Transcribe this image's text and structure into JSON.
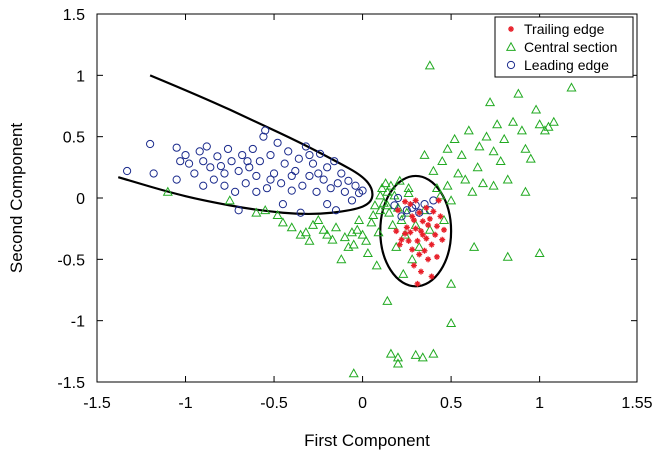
{
  "chart_data": {
    "type": "scatter",
    "title": "",
    "xlabel": "First Component",
    "ylabel": "Second Component",
    "xlim": [
      -1.5,
      1.55
    ],
    "ylim": [
      -1.5,
      1.5
    ],
    "x_ticks": [
      -1.5,
      -1,
      -0.5,
      0,
      0.5,
      1,
      1.55
    ],
    "x_tick_labels": [
      "-1.5",
      "-1",
      "-0.5",
      "0",
      "0.5",
      "1",
      "1.55"
    ],
    "y_ticks": [
      -1.5,
      -1,
      -0.5,
      0,
      0.5,
      1,
      1.5
    ],
    "y_tick_labels": [
      "-1.5",
      "-1",
      "-0.5",
      "0",
      "0.5",
      "1",
      "1.5"
    ],
    "grid": false,
    "legend_position": "top-right",
    "colors": {
      "trailing": "#e8202a",
      "central": "#22aa22",
      "leading": "#1a2a8c",
      "ellipse": "#000000"
    },
    "series": [
      {
        "name": "Trailing edge",
        "marker": "star",
        "points": [
          [
            0.19,
            -0.27
          ],
          [
            0.2,
            -0.1
          ],
          [
            0.21,
            -0.38
          ],
          [
            0.22,
            -0.34
          ],
          [
            0.24,
            -0.29
          ],
          [
            0.24,
            -0.03
          ],
          [
            0.25,
            -0.24
          ],
          [
            0.26,
            -0.35
          ],
          [
            0.27,
            -0.28
          ],
          [
            0.27,
            -0.05
          ],
          [
            0.28,
            -0.42
          ],
          [
            0.29,
            -0.18
          ],
          [
            0.29,
            -0.55
          ],
          [
            0.3,
            -0.25
          ],
          [
            0.3,
            -0.02
          ],
          [
            0.31,
            -0.35
          ],
          [
            0.32,
            -0.46
          ],
          [
            0.32,
            -0.12
          ],
          [
            0.33,
            -0.6
          ],
          [
            0.33,
            -0.27
          ],
          [
            0.34,
            -0.3
          ],
          [
            0.34,
            -0.19
          ],
          [
            0.35,
            -0.43
          ],
          [
            0.36,
            -0.33
          ],
          [
            0.36,
            -0.08
          ],
          [
            0.37,
            -0.5
          ],
          [
            0.37,
            -0.22
          ],
          [
            0.38,
            -0.17
          ],
          [
            0.39,
            -0.38
          ],
          [
            0.39,
            -0.64
          ],
          [
            0.4,
            -0.11
          ],
          [
            0.41,
            -0.3
          ],
          [
            0.42,
            -0.23
          ],
          [
            0.42,
            -0.48
          ],
          [
            0.43,
            -0.02
          ],
          [
            0.44,
            -0.15
          ],
          [
            0.45,
            -0.34
          ],
          [
            0.46,
            -0.26
          ],
          [
            0.31,
            -0.7
          ],
          [
            0.28,
            -0.15
          ]
        ]
      },
      {
        "name": "Central section",
        "marker": "triangle",
        "points": [
          [
            -1.1,
            0.05
          ],
          [
            -0.75,
            -0.02
          ],
          [
            -0.6,
            -0.12
          ],
          [
            -0.55,
            -0.1
          ],
          [
            -0.48,
            -0.14
          ],
          [
            -0.45,
            -0.2
          ],
          [
            -0.4,
            -0.24
          ],
          [
            -0.35,
            -0.3
          ],
          [
            -0.32,
            -0.28
          ],
          [
            -0.3,
            -0.35
          ],
          [
            -0.28,
            -0.22
          ],
          [
            -0.25,
            -0.18
          ],
          [
            -0.22,
            -0.26
          ],
          [
            -0.2,
            -0.3
          ],
          [
            -0.17,
            -0.34
          ],
          [
            -0.15,
            -0.24
          ],
          [
            -0.12,
            -0.5
          ],
          [
            -0.1,
            -0.32
          ],
          [
            -0.08,
            -0.4
          ],
          [
            -0.06,
            -0.28
          ],
          [
            -0.05,
            -0.38
          ],
          [
            -0.03,
            -0.26
          ],
          [
            -0.02,
            -0.18
          ],
          [
            0.0,
            -0.3
          ],
          [
            0.02,
            -0.35
          ],
          [
            0.03,
            -0.45
          ],
          [
            0.05,
            -0.2
          ],
          [
            0.06,
            -0.14
          ],
          [
            0.07,
            -0.06
          ],
          [
            0.08,
            -0.55
          ],
          [
            0.09,
            -0.28
          ],
          [
            0.1,
            0.02
          ],
          [
            0.1,
            -0.1
          ],
          [
            0.11,
            0.08
          ],
          [
            0.12,
            -0.04
          ],
          [
            0.13,
            0.12
          ],
          [
            0.14,
            0.05
          ],
          [
            0.15,
            -0.12
          ],
          [
            0.16,
            0.1
          ],
          [
            0.17,
            -0.22
          ],
          [
            0.18,
            0.02
          ],
          [
            0.19,
            -0.4
          ],
          [
            0.2,
            -0.08
          ],
          [
            0.21,
            0.14
          ],
          [
            0.22,
            -0.18
          ],
          [
            0.23,
            -0.62
          ],
          [
            0.24,
            -0.3
          ],
          [
            0.25,
            -0.12
          ],
          [
            0.26,
            0.04
          ],
          [
            0.28,
            -0.5
          ],
          [
            0.3,
            -0.22
          ],
          [
            0.32,
            -0.4
          ],
          [
            0.35,
            -0.1
          ],
          [
            0.38,
            -0.26
          ],
          [
            0.4,
            0.22
          ],
          [
            0.42,
            0.08
          ],
          [
            0.44,
            0.02
          ],
          [
            0.45,
            0.3
          ],
          [
            0.46,
            -0.18
          ],
          [
            0.48,
            0.1
          ],
          [
            0.5,
            -0.02
          ],
          [
            0.52,
            0.48
          ],
          [
            0.54,
            0.2
          ],
          [
            0.56,
            0.35
          ],
          [
            0.58,
            0.15
          ],
          [
            0.6,
            0.55
          ],
          [
            0.62,
            0.05
          ],
          [
            0.63,
            -0.4
          ],
          [
            0.65,
            0.25
          ],
          [
            0.66,
            0.42
          ],
          [
            0.68,
            0.12
          ],
          [
            0.7,
            0.5
          ],
          [
            0.72,
            0.78
          ],
          [
            0.74,
            0.38
          ],
          [
            0.76,
            0.6
          ],
          [
            0.78,
            0.3
          ],
          [
            0.8,
            0.48
          ],
          [
            0.82,
            0.15
          ],
          [
            0.85,
            0.62
          ],
          [
            0.88,
            0.85
          ],
          [
            0.9,
            0.55
          ],
          [
            0.92,
            0.4
          ],
          [
            0.95,
            0.32
          ],
          [
            0.98,
            0.72
          ],
          [
            1.0,
            0.6
          ],
          [
            1.03,
            0.55
          ],
          [
            1.05,
            0.58
          ],
          [
            1.08,
            0.62
          ],
          [
            1.18,
            0.9
          ],
          [
            1.0,
            -0.45
          ],
          [
            0.38,
            1.08
          ],
          [
            0.35,
            0.35
          ],
          [
            0.48,
            0.4
          ],
          [
            0.74,
            0.1
          ],
          [
            0.82,
            -0.48
          ],
          [
            0.92,
            0.05
          ],
          [
            0.5,
            -0.7
          ],
          [
            0.5,
            -1.02
          ],
          [
            0.14,
            -0.84
          ],
          [
            0.16,
            -1.27
          ],
          [
            0.2,
            -1.3
          ],
          [
            0.2,
            -1.35
          ],
          [
            0.3,
            -1.28
          ],
          [
            0.34,
            -1.3
          ],
          [
            0.4,
            -1.27
          ],
          [
            -0.05,
            -1.43
          ],
          [
            0.26,
            0.08
          ],
          [
            0.14,
            -0.06
          ]
        ]
      },
      {
        "name": "Leading edge",
        "marker": "circle",
        "points": [
          [
            -1.33,
            0.22
          ],
          [
            -1.2,
            0.44
          ],
          [
            -1.18,
            0.2
          ],
          [
            -1.05,
            0.41
          ],
          [
            -1.03,
            0.3
          ],
          [
            -1.0,
            0.35
          ],
          [
            -0.98,
            0.28
          ],
          [
            -0.95,
            0.2
          ],
          [
            -0.92,
            0.38
          ],
          [
            -0.9,
            0.3
          ],
          [
            -0.88,
            0.42
          ],
          [
            -0.86,
            0.25
          ],
          [
            -0.84,
            0.15
          ],
          [
            -0.82,
            0.34
          ],
          [
            -0.8,
            0.26
          ],
          [
            -0.78,
            0.2
          ],
          [
            -0.76,
            0.4
          ],
          [
            -0.74,
            0.3
          ],
          [
            -0.72,
            0.05
          ],
          [
            -0.7,
            0.22
          ],
          [
            -0.68,
            0.35
          ],
          [
            -0.66,
            0.12
          ],
          [
            -0.64,
            0.25
          ],
          [
            -0.62,
            0.4
          ],
          [
            -0.6,
            0.18
          ],
          [
            -0.58,
            0.3
          ],
          [
            -0.56,
            0.5
          ],
          [
            -0.55,
            0.55
          ],
          [
            -0.54,
            0.08
          ],
          [
            -0.52,
            0.35
          ],
          [
            -0.5,
            0.2
          ],
          [
            -0.48,
            0.45
          ],
          [
            -0.46,
            0.12
          ],
          [
            -0.44,
            0.28
          ],
          [
            -0.42,
            0.38
          ],
          [
            -0.4,
            0.06
          ],
          [
            -0.38,
            0.22
          ],
          [
            -0.36,
            0.32
          ],
          [
            -0.34,
            0.1
          ],
          [
            -0.32,
            0.42
          ],
          [
            -0.3,
            0.18
          ],
          [
            -0.28,
            0.28
          ],
          [
            -0.26,
            0.05
          ],
          [
            -0.24,
            0.36
          ],
          [
            -0.22,
            0.15
          ],
          [
            -0.2,
            0.25
          ],
          [
            -0.18,
            0.08
          ],
          [
            -0.16,
            0.3
          ],
          [
            -0.14,
            0.12
          ],
          [
            -0.12,
            0.2
          ],
          [
            -0.1,
            0.05
          ],
          [
            -0.08,
            0.14
          ],
          [
            -0.06,
            -0.02
          ],
          [
            -0.04,
            0.1
          ],
          [
            -0.02,
            0.04
          ],
          [
            0.0,
            0.06
          ],
          [
            -0.45,
            -0.05
          ],
          [
            -0.35,
            -0.12
          ],
          [
            -0.7,
            -0.1
          ],
          [
            -0.6,
            0.05
          ],
          [
            -0.9,
            0.1
          ],
          [
            -1.05,
            0.15
          ],
          [
            -0.4,
            0.18
          ],
          [
            -0.3,
            0.35
          ],
          [
            -0.25,
            0.2
          ],
          [
            -0.2,
            -0.05
          ],
          [
            -0.15,
            -0.1
          ],
          [
            -0.52,
            0.15
          ],
          [
            -0.65,
            0.3
          ],
          [
            -0.78,
            0.1
          ],
          [
            0.25,
            -0.1
          ],
          [
            0.3,
            -0.06
          ],
          [
            0.32,
            -0.12
          ],
          [
            0.35,
            -0.05
          ],
          [
            0.38,
            -0.1
          ],
          [
            0.2,
            0.0
          ],
          [
            0.28,
            -0.08
          ],
          [
            0.22,
            -0.15
          ],
          [
            0.4,
            -0.02
          ],
          [
            0.18,
            -0.06
          ]
        ]
      }
    ],
    "ellipses": [
      {
        "cx": 0.3,
        "cy": -0.27,
        "rx": 0.2,
        "ry": 0.45,
        "angle_deg": 0
      },
      {
        "type": "parabola-outline",
        "points": [
          [
            -1.2,
            1.0
          ],
          [
            -0.9,
            0.82
          ],
          [
            -0.6,
            0.62
          ],
          [
            -0.35,
            0.45
          ],
          [
            -0.15,
            0.3
          ],
          [
            0.0,
            0.18
          ],
          [
            0.06,
            0.07
          ],
          [
            0.05,
            -0.04
          ],
          [
            -0.05,
            -0.1
          ],
          [
            -0.3,
            -0.14
          ],
          [
            -0.6,
            -0.1
          ],
          [
            -0.9,
            -0.02
          ],
          [
            -1.1,
            0.05
          ],
          [
            -1.38,
            0.17
          ]
        ]
      }
    ]
  }
}
